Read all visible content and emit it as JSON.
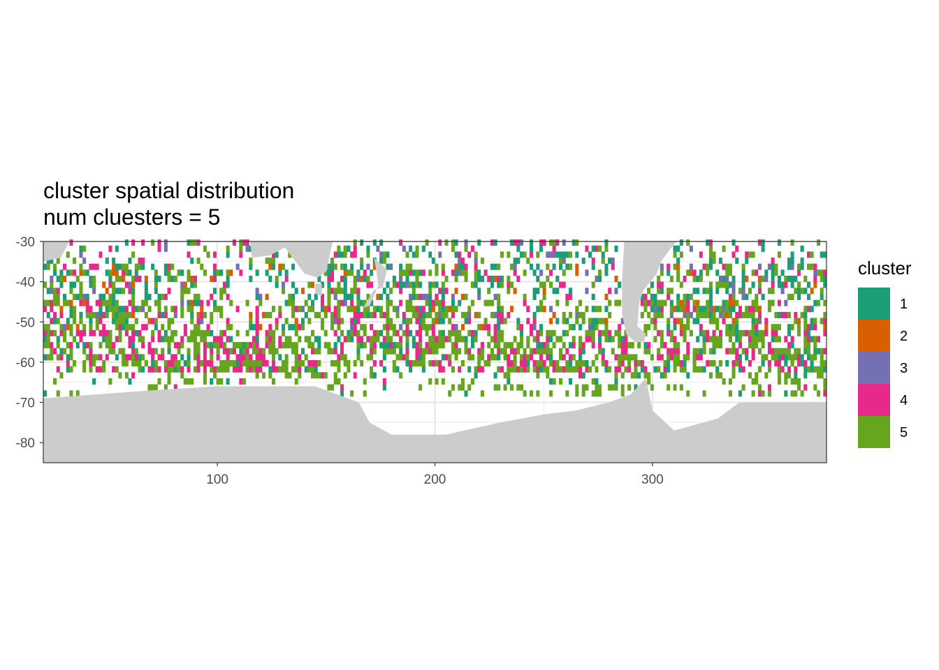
{
  "chart_data": {
    "type": "heatmap",
    "title": "cluster spatial distribution",
    "subtitle": "num cluesters = 5",
    "xlabel": "",
    "ylabel": "",
    "xlim": [
      20,
      380
    ],
    "ylim": [
      -85,
      -30
    ],
    "x_ticks": [
      100,
      200,
      300
    ],
    "y_ticks": [
      -30,
      -40,
      -50,
      -60,
      -70,
      -80
    ],
    "x_tick_labels": [
      "100",
      "200",
      "300"
    ],
    "y_tick_labels": [
      "-30",
      "-40",
      "-50",
      "-60",
      "-70",
      "-80"
    ],
    "grid": true,
    "land_color": "#cccccc",
    "legend": {
      "title": "cluster",
      "position": "right",
      "entries": [
        {
          "label": "1",
          "color": "#1b9e77"
        },
        {
          "label": "2",
          "color": "#d95f02"
        },
        {
          "label": "3",
          "color": "#7570b3"
        },
        {
          "label": "4",
          "color": "#e7298a"
        },
        {
          "label": "5",
          "color": "#66a61e"
        }
      ]
    },
    "cell_size_degrees": 1.5,
    "land_regions": [
      {
        "name": "antarctica",
        "outline": [
          [
            20,
            -85
          ],
          [
            380,
            -85
          ],
          [
            380,
            -70
          ],
          [
            340,
            -70
          ],
          [
            330,
            -74
          ],
          [
            310,
            -77
          ],
          [
            300,
            -72
          ],
          [
            297,
            -64
          ],
          [
            290,
            -68
          ],
          [
            280,
            -70
          ],
          [
            265,
            -72
          ],
          [
            250,
            -73
          ],
          [
            230,
            -75
          ],
          [
            205,
            -78
          ],
          [
            180,
            -78
          ],
          [
            170,
            -75
          ],
          [
            165,
            -70
          ],
          [
            145,
            -66
          ],
          [
            130,
            -66
          ],
          [
            100,
            -66
          ],
          [
            70,
            -67
          ],
          [
            45,
            -68
          ],
          [
            20,
            -69
          ]
        ]
      },
      {
        "name": "africa-tip",
        "outline": [
          [
            20,
            -30
          ],
          [
            20,
            -35
          ],
          [
            28,
            -34
          ],
          [
            32,
            -30
          ]
        ]
      },
      {
        "name": "australia",
        "outline": [
          [
            115,
            -30
          ],
          [
            116,
            -34
          ],
          [
            124,
            -33.5
          ],
          [
            131,
            -31.5
          ],
          [
            136,
            -35
          ],
          [
            140,
            -38
          ],
          [
            146,
            -39
          ],
          [
            150,
            -37.5
          ],
          [
            153,
            -30
          ]
        ]
      },
      {
        "name": "tasmania",
        "outline": [
          [
            145,
            -40.5
          ],
          [
            148,
            -40.5
          ],
          [
            148,
            -43.5
          ],
          [
            145,
            -43
          ]
        ]
      },
      {
        "name": "new-zealand",
        "outline": [
          [
            172,
            -34
          ],
          [
            178,
            -37
          ],
          [
            176,
            -41.5
          ],
          [
            172,
            -42
          ],
          [
            167,
            -46.5
          ],
          [
            170,
            -46
          ],
          [
            174,
            -41
          ],
          [
            173,
            -37
          ]
        ]
      },
      {
        "name": "south-america",
        "outline": [
          [
            287,
            -30
          ],
          [
            286,
            -40
          ],
          [
            286,
            -48
          ],
          [
            288,
            -53
          ],
          [
            292,
            -55
          ],
          [
            296,
            -55
          ],
          [
            297,
            -53
          ],
          [
            293,
            -51
          ],
          [
            294,
            -45
          ],
          [
            296,
            -42
          ],
          [
            302,
            -38
          ],
          [
            304,
            -35
          ],
          [
            308,
            -32
          ],
          [
            311,
            -30
          ]
        ]
      }
    ],
    "zonal_bands": [
      {
        "lat_min": -69,
        "lat_max": -62,
        "density": 0.32,
        "weights": [
          2,
          0,
          0,
          1,
          9
        ]
      },
      {
        "lat_min": -62,
        "lat_max": -52,
        "density": 0.72,
        "weights": [
          2,
          0,
          0,
          5,
          8
        ]
      },
      {
        "lat_min": -52,
        "lat_max": -44,
        "density": 0.6,
        "weights": [
          3,
          1,
          1,
          3,
          7
        ]
      },
      {
        "lat_min": -44,
        "lat_max": -36,
        "density": 0.5,
        "weights": [
          4,
          1,
          1,
          2,
          5
        ]
      },
      {
        "lat_min": -36,
        "lat_max": -30,
        "density": 0.32,
        "weights": [
          4,
          0,
          1,
          2,
          3
        ]
      }
    ]
  }
}
